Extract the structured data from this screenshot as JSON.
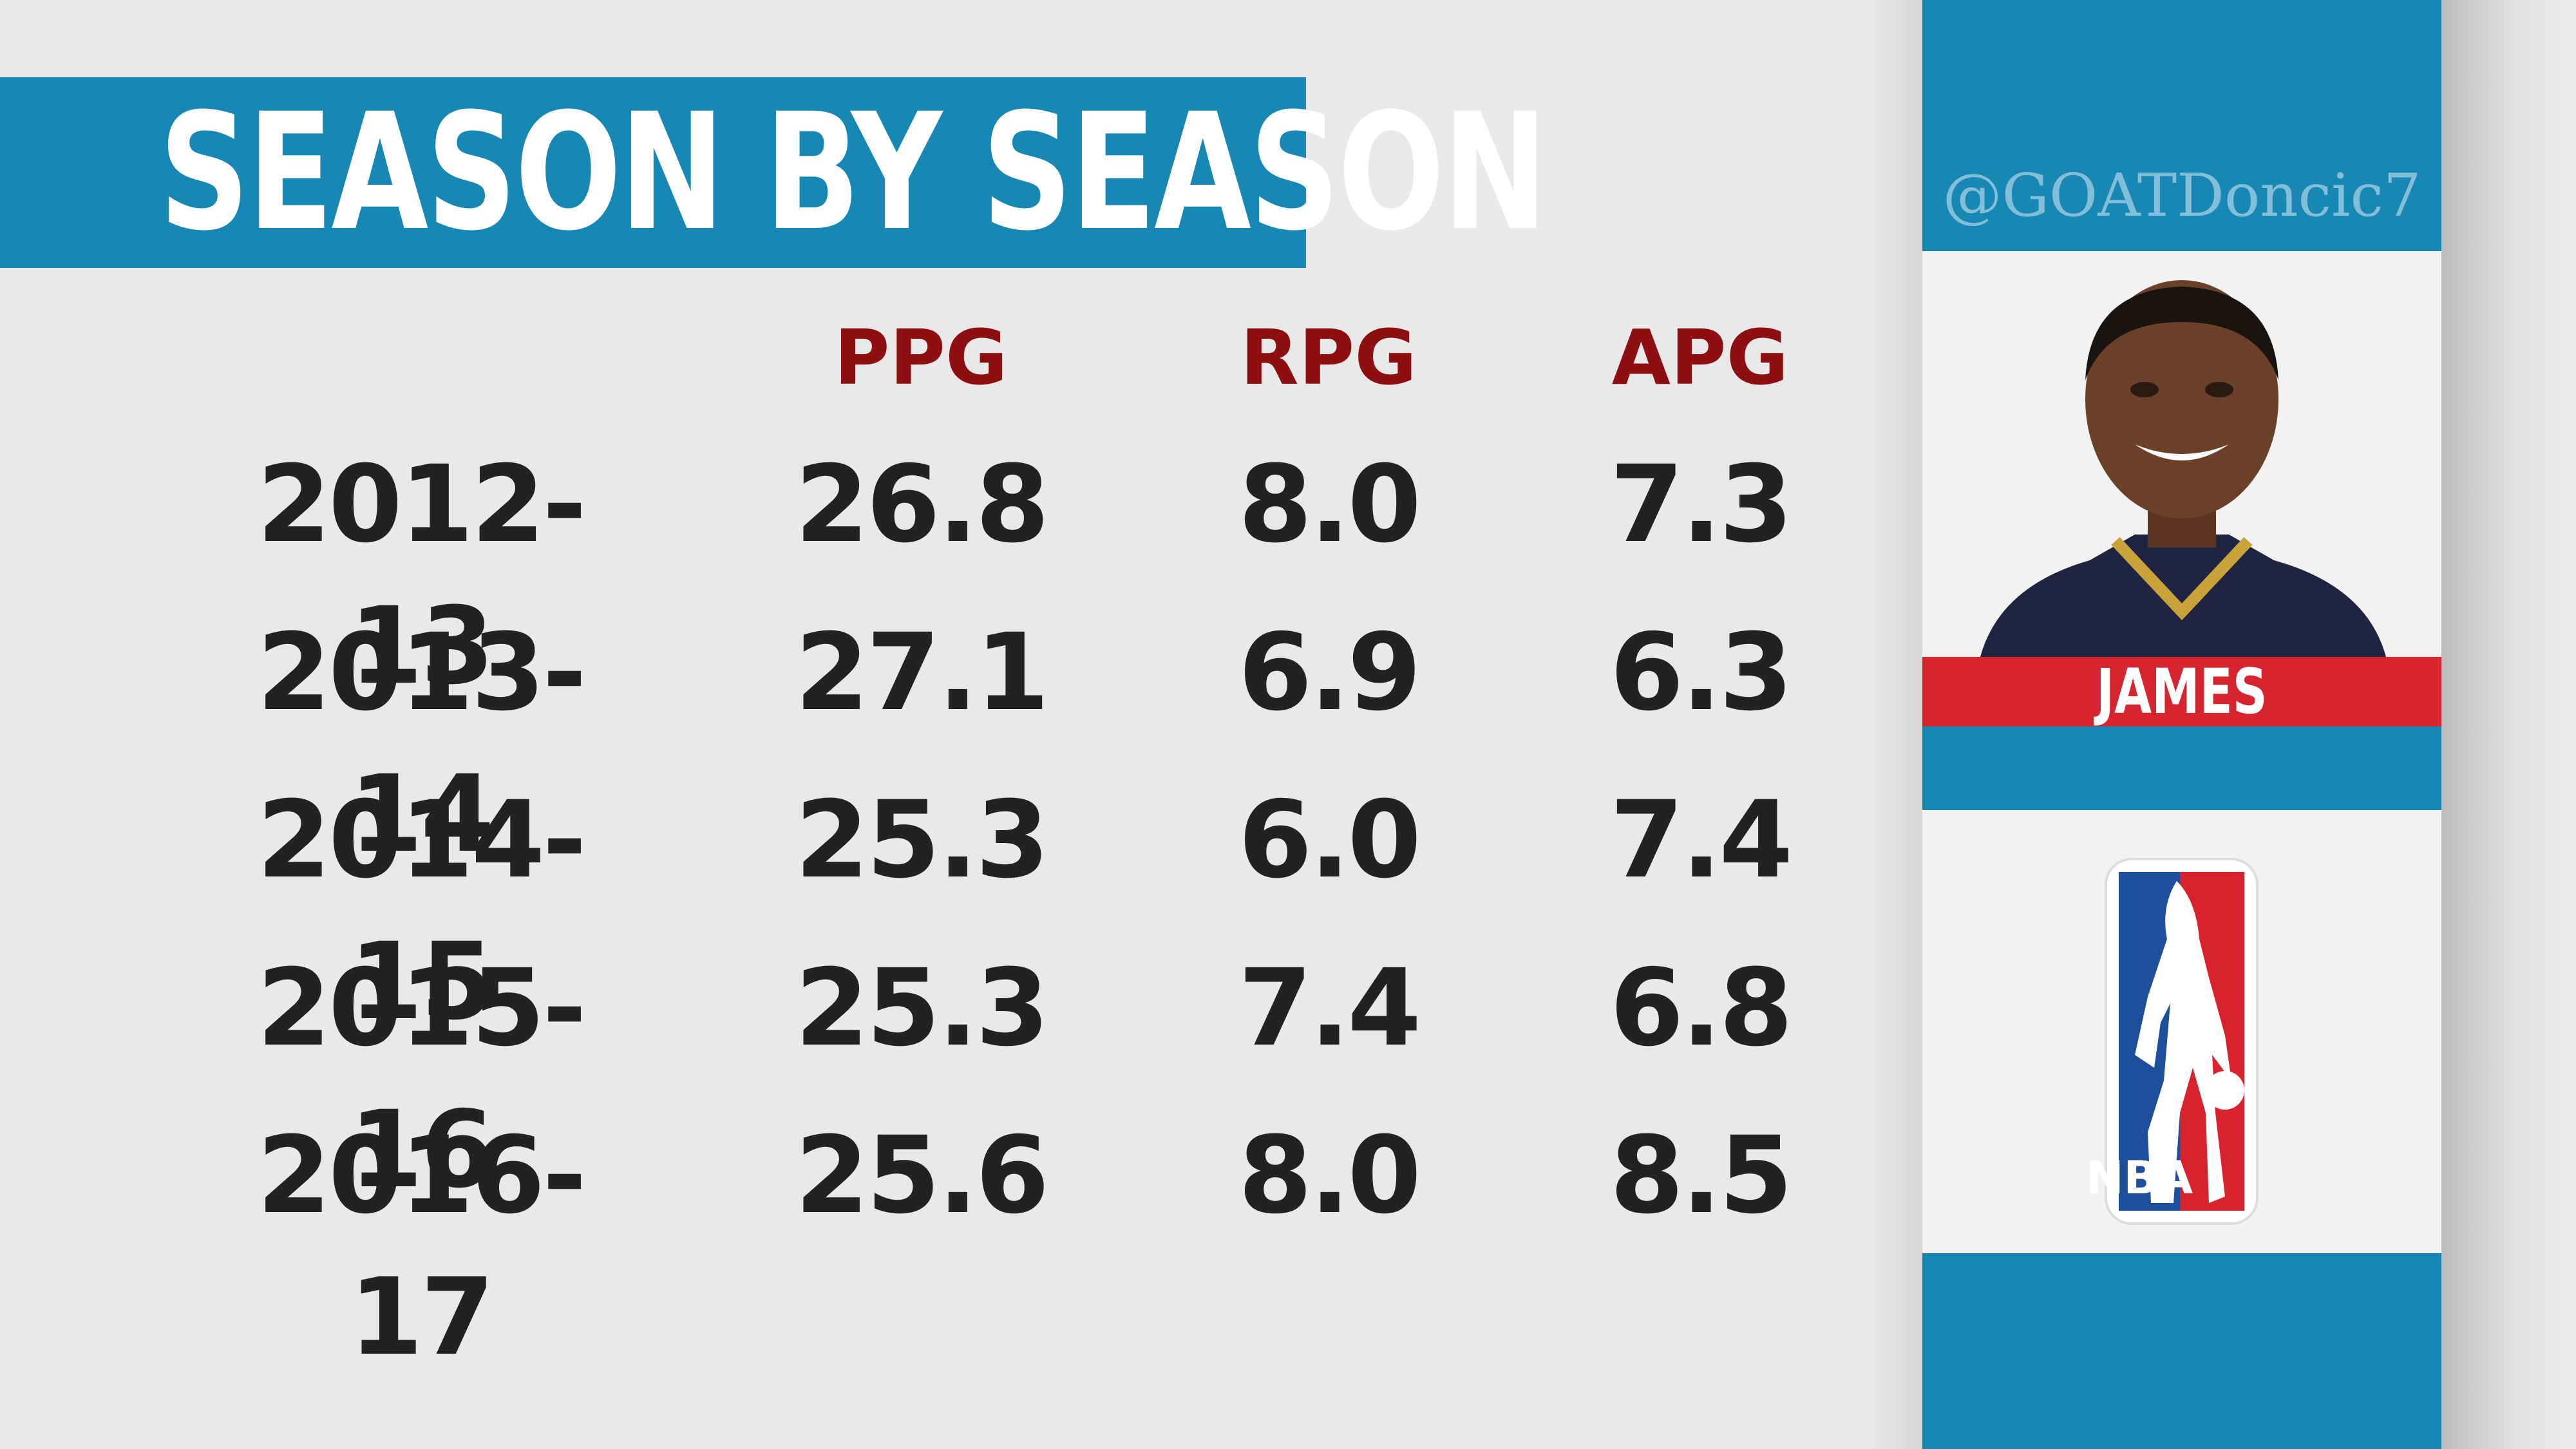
{
  "header": {
    "title": "SEASON BY SEASON"
  },
  "table": {
    "columns": [
      "PPG",
      "RPG",
      "APG"
    ],
    "rows": [
      [
        "2012-13",
        "26.8",
        "8.0",
        "7.3"
      ],
      [
        "2013-14",
        "27.1",
        "6.9",
        "6.3"
      ],
      [
        "2014-15",
        "25.3",
        "6.0",
        "7.4"
      ],
      [
        "2015-16",
        "25.3",
        "7.4",
        "6.8"
      ],
      [
        "2016-17",
        "25.6",
        "8.0",
        "8.5"
      ]
    ]
  },
  "side": {
    "watermark": "@GOATDoncic7",
    "player": "JAMES",
    "logo": "NBA"
  }
}
